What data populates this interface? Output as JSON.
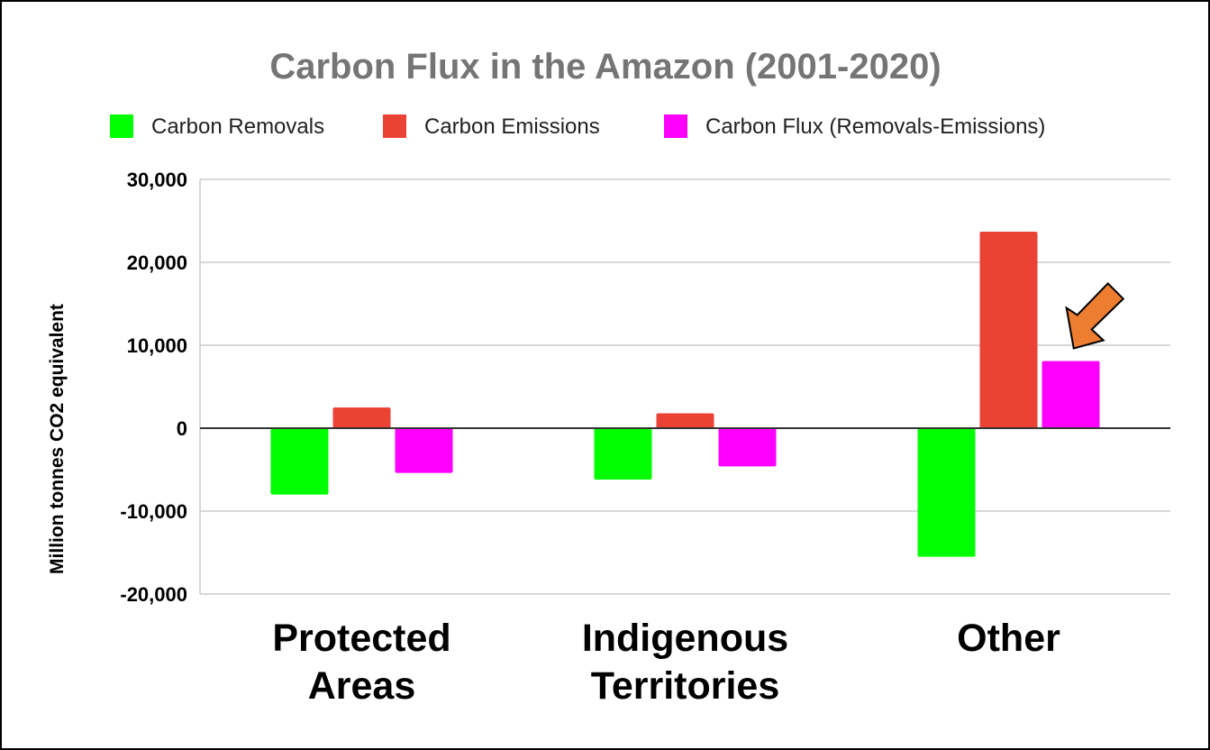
{
  "chart_data": {
    "type": "bar",
    "title": "Carbon Flux in the Amazon (2001-2020)",
    "xlabel": "",
    "ylabel": "Million tonnes CO2 equivalent",
    "categories": [
      [
        "Protected",
        "Areas"
      ],
      [
        "Indigenous",
        "Territories"
      ],
      [
        "Other"
      ]
    ],
    "series": [
      {
        "name": "Carbon Removals",
        "color": "#00ff00",
        "values": [
          -8000,
          -6200,
          -15500
        ]
      },
      {
        "name": "Carbon Emissions",
        "color": "#ea4335",
        "values": [
          2500,
          1800,
          23700
        ]
      },
      {
        "name": "Carbon Flux (Removals-Emissions)",
        "color": "#ff00ff",
        "values": [
          -5400,
          -4600,
          8100
        ]
      }
    ],
    "ylim": [
      -20000,
      30000
    ],
    "yticks": [
      30000,
      20000,
      10000,
      0,
      -10000,
      -20000
    ],
    "ytick_labels": [
      "30,000",
      "20,000",
      "10,000",
      "0",
      "-10,000",
      "-20,000"
    ],
    "grid": true,
    "legend_position": "top",
    "annotation": {
      "type": "arrow",
      "color": "#ed7d31",
      "target": {
        "series": "Carbon Flux (Removals-Emissions)",
        "category": "Other"
      }
    }
  }
}
